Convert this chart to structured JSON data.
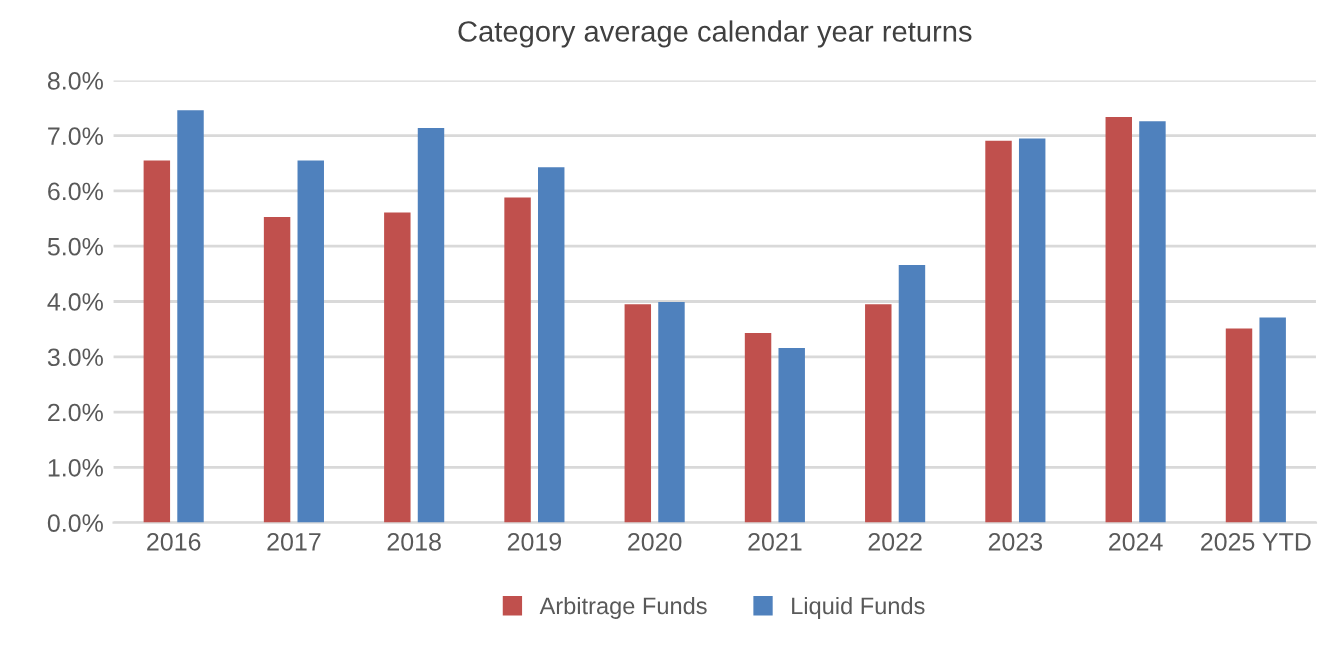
{
  "chart_data": {
    "type": "bar",
    "title": "Category average calendar year returns",
    "categories": [
      "2016",
      "2017",
      "2018",
      "2019",
      "2020",
      "2021",
      "2022",
      "2023",
      "2024",
      "2025 YTD"
    ],
    "series": [
      {
        "name": "Arbitrage Funds",
        "color": "#c0504d",
        "values": [
          6.55,
          5.53,
          5.61,
          5.88,
          3.95,
          3.43,
          3.95,
          6.91,
          7.34,
          3.51
        ]
      },
      {
        "name": "Liquid Funds",
        "color": "#4f81bd",
        "values": [
          7.46,
          6.55,
          7.14,
          6.43,
          3.99,
          3.16,
          4.66,
          6.95,
          7.26,
          3.71
        ]
      }
    ],
    "ylim": [
      0,
      8
    ],
    "yticks": [
      {
        "value": 0,
        "label": "0.0%"
      },
      {
        "value": 1,
        "label": "1.0%"
      },
      {
        "value": 2,
        "label": "2.0%"
      },
      {
        "value": 3,
        "label": "3.0%"
      },
      {
        "value": 4,
        "label": "4.0%"
      },
      {
        "value": 5,
        "label": "5.0%"
      },
      {
        "value": 6,
        "label": "6.0%"
      },
      {
        "value": 7,
        "label": "7.0%"
      },
      {
        "value": 8,
        "label": "8.0%"
      }
    ],
    "grid": "y",
    "legend": "bottom"
  }
}
